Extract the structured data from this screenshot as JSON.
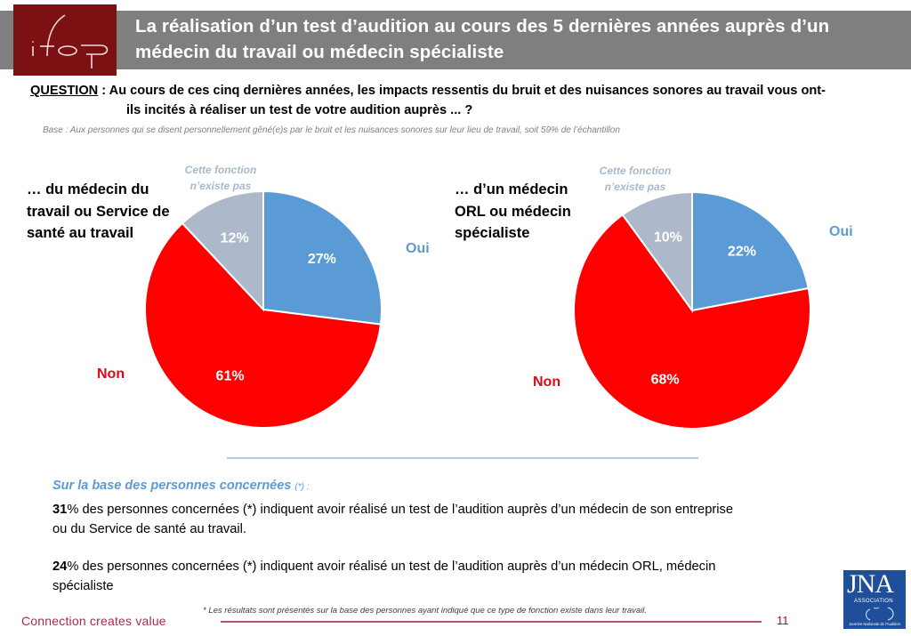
{
  "header": {
    "logo_text": "ifop",
    "title": "La réalisation d’un test d’audition au cours des 5 dernières années auprès d’un médecin du travail ou médecin spécialiste"
  },
  "question": {
    "label": "QUESTION",
    "separator": " : ",
    "line1": "Au cours de ces cinq dernières années, les impacts ressentis du bruit et des nuisances sonores au travail vous ont-",
    "line2": "ils incités à réaliser un test de votre audition auprès ... ?"
  },
  "base_note": "Base : Aux personnes qui se disent personnellement gêné(e)s par le bruit et les nuisances sonores sur leur lieu de travail, soit 59% de l’échantillon",
  "colors": {
    "oui": "#5b9bd5",
    "non": "#ff0000",
    "na": "#adb9ca",
    "banner": "#7f7f7f",
    "logo": "#7b1112"
  },
  "chart_data": [
    {
      "type": "pie",
      "title": "… du médecin du travail ou Service de santé au travail",
      "title_lines": [
        "… du médecin du",
        "travail ou Service de",
        "santé au travail"
      ],
      "unit": "%",
      "slices": [
        {
          "label": "Oui",
          "value": 27,
          "display": "27%"
        },
        {
          "label": "Non",
          "value": 61,
          "display": "61%"
        },
        {
          "label": "Cette fonction n’existe pas",
          "value": 12,
          "display": "12%"
        }
      ],
      "na_label_lines": [
        "Cette fonction",
        "n’existe pas"
      ]
    },
    {
      "type": "pie",
      "title": "… d’un médecin ORL ou médecin spécialiste",
      "title_lines": [
        "… d’un médecin",
        "ORL ou médecin",
        "spécialiste"
      ],
      "unit": "%",
      "slices": [
        {
          "label": "Oui",
          "value": 22,
          "display": "22%"
        },
        {
          "label": "Non",
          "value": 68,
          "display": "68%"
        },
        {
          "label": "Cette fonction n’existe pas",
          "value": 10,
          "display": "10%"
        }
      ],
      "na_label_lines": [
        "Cette fonction",
        "n’existe pas"
      ]
    }
  ],
  "summary": {
    "heading": "Sur la base des personnes concernées",
    "heading_star": "(*) :",
    "items": [
      {
        "value": "31",
        "text_line1": "% des personnes concernées (*) indiquent avoir réalisé un test de l’audition auprès d’un médecin de son entreprise",
        "text_line2": "ou du Service de santé au travail."
      },
      {
        "value": "24",
        "text_line1": "% des personnes concernées (*) indiquent avoir réalisé un test de l’audition auprès d’un médecin ORL, médecin",
        "text_line2": "spécialiste"
      }
    ]
  },
  "footer": {
    "footnote": "* Les résultats sont présentés sur la base des personnes ayant indiqué que ce type de fonction existe dans leur travail.",
    "tagline": "Connection creates value",
    "page_number": "11",
    "jna_logo": {
      "main": "JNA",
      "sub": "ASSOCIATION",
      "caption": "Journée Nationale de l'Audition"
    }
  }
}
